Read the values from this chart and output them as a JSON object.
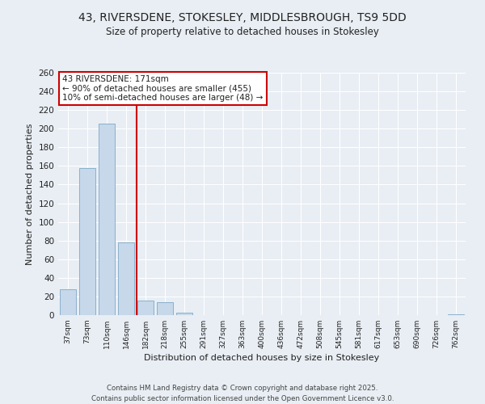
{
  "title_line1": "43, RIVERSDENE, STOKESLEY, MIDDLESBROUGH, TS9 5DD",
  "title_line2": "Size of property relative to detached houses in Stokesley",
  "xlabel": "Distribution of detached houses by size in Stokesley",
  "ylabel": "Number of detached properties",
  "bar_labels": [
    "37sqm",
    "73sqm",
    "110sqm",
    "146sqm",
    "182sqm",
    "218sqm",
    "255sqm",
    "291sqm",
    "327sqm",
    "363sqm",
    "400sqm",
    "436sqm",
    "472sqm",
    "508sqm",
    "545sqm",
    "581sqm",
    "617sqm",
    "653sqm",
    "690sqm",
    "726sqm",
    "762sqm"
  ],
  "bar_values": [
    28,
    158,
    205,
    78,
    16,
    14,
    3,
    0,
    0,
    0,
    0,
    0,
    0,
    0,
    0,
    0,
    0,
    0,
    0,
    0,
    1
  ],
  "bar_color": "#c6d8ea",
  "bar_edge_color": "#8ab0cc",
  "vline_color": "#cc0000",
  "annotation_title": "43 RIVERSDENE: 171sqm",
  "annotation_line1": "← 90% of detached houses are smaller (455)",
  "annotation_line2": "10% of semi-detached houses are larger (48) →",
  "annotation_box_color": "white",
  "annotation_box_edge_color": "#cc0000",
  "ylim": [
    0,
    260
  ],
  "yticks": [
    0,
    20,
    40,
    60,
    80,
    100,
    120,
    140,
    160,
    180,
    200,
    220,
    240,
    260
  ],
  "footer_line1": "Contains HM Land Registry data © Crown copyright and database right 2025.",
  "footer_line2": "Contains public sector information licensed under the Open Government Licence v3.0.",
  "bg_color": "#e8eef4",
  "grid_color": "#ffffff",
  "text_color": "#222222"
}
